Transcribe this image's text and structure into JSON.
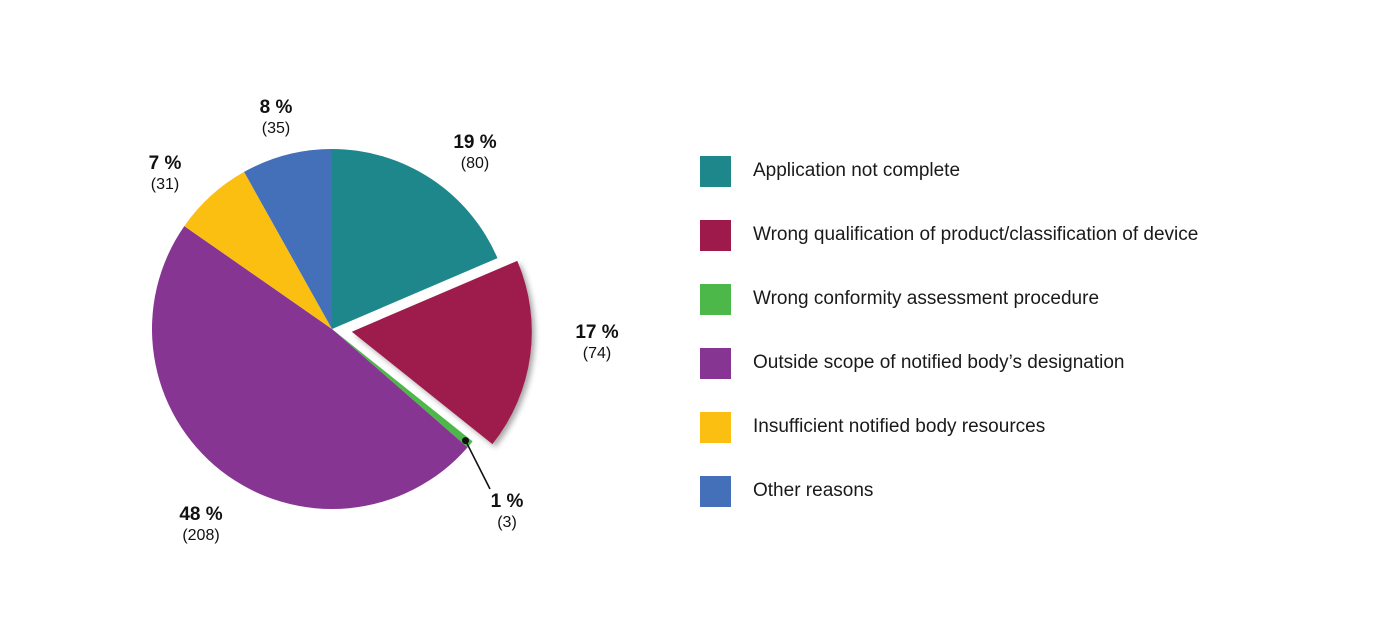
{
  "chart_data": {
    "type": "pie",
    "start_angle_deg": 0,
    "direction": "clockwise",
    "exploded": "Wrong qualification of product/classification of device",
    "slices": [
      {
        "label": "Application not complete",
        "percent_label": "19 %",
        "count_label": "(80)",
        "value": 80,
        "color": "#1e878c"
      },
      {
        "label": "Wrong qualification of product/classification of device",
        "percent_label": "17 %",
        "count_label": "(74)",
        "value": 74,
        "color": "#9e1a4b"
      },
      {
        "label": "Wrong conformity assessment procedure",
        "percent_label": "1 %",
        "count_label": "(3)",
        "value": 3,
        "color": "#4cb84a"
      },
      {
        "label": "Outside scope of notified body’s designation",
        "percent_label": "48 %",
        "count_label": "(208)",
        "value": 208,
        "color": "#873593"
      },
      {
        "label": "Insufficient notified body resources",
        "percent_label": "7 %",
        "count_label": "(31)",
        "value": 31,
        "color": "#fbbf12"
      },
      {
        "label": "Other reasons",
        "percent_label": "8 %",
        "count_label": "(35)",
        "value": 35,
        "color": "#4370b8"
      }
    ],
    "legend_position": "right"
  }
}
